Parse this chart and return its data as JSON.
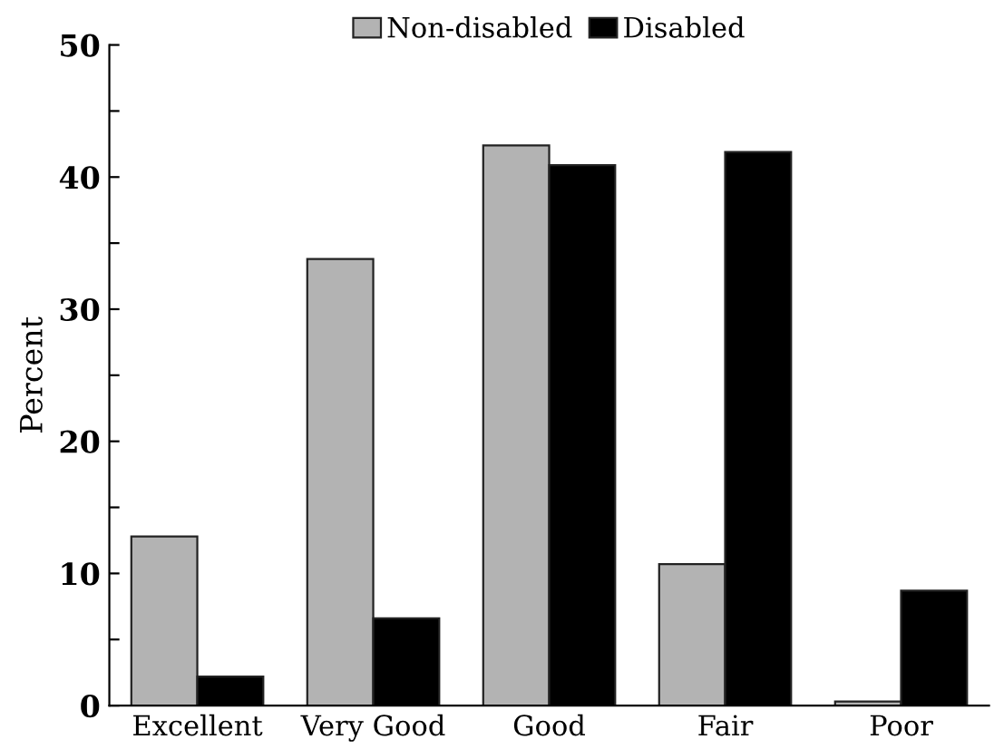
{
  "chart_data": {
    "type": "bar",
    "ylabel": "Percent",
    "categories": [
      "Excellent",
      "Very Good",
      "Good",
      "Fair",
      "Poor"
    ],
    "series": [
      {
        "name": "Non-disabled",
        "color": "#b3b3b3",
        "values": [
          12.8,
          33.8,
          42.4,
          10.7,
          0.3
        ]
      },
      {
        "name": "Disabled",
        "color": "#000000",
        "values": [
          2.2,
          6.6,
          40.9,
          41.9,
          8.7
        ]
      }
    ],
    "ylim": [
      0,
      50
    ],
    "yticks": [
      0,
      {
        "value": 5,
        "label": null
      },
      10,
      {
        "value": 15,
        "label": null
      },
      20,
      {
        "value": 25,
        "label": null
      },
      30,
      {
        "value": 35,
        "label": null
      },
      40,
      {
        "value": 45,
        "label": null
      },
      50
    ],
    "grid": false,
    "legend": "top"
  }
}
